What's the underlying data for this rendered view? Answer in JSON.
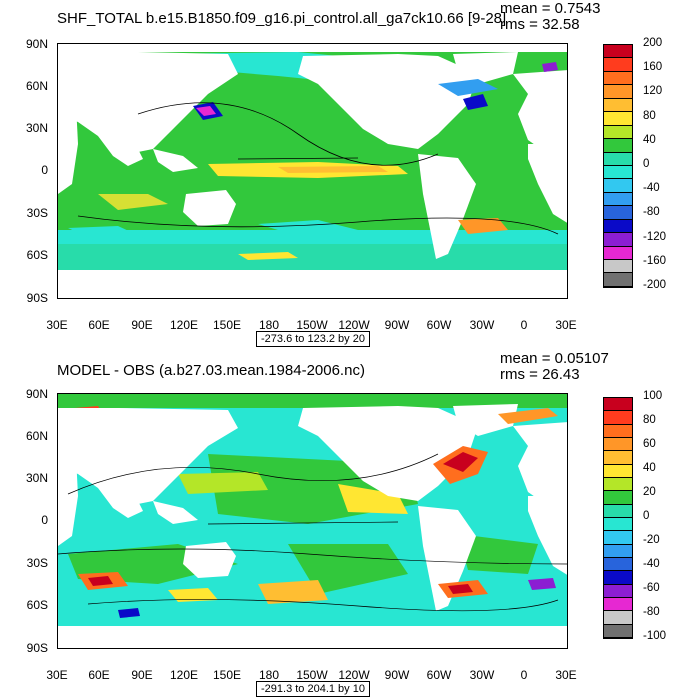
{
  "panels": [
    {
      "title": "SHF_TOTAL b.e15.B1850.f09_g16.pi_control.all_ga7ck10.66 [9-28]",
      "mean": "mean = 0.7543",
      "rms": "rms = 32.58",
      "range": "-273.6 to 123.2 by 20",
      "colorbar_labels": [
        "200",
        "160",
        "120",
        "80",
        "40",
        "0",
        "-40",
        "-80",
        "-120",
        "-160",
        "-200"
      ],
      "colorbar_colors": [
        "#c8001e",
        "#ff3c1e",
        "#ff6e1e",
        "#ff9628",
        "#ffbe32",
        "#ffe632",
        "#b4e628",
        "#32c83c",
        "#28dcaa",
        "#28e6d2",
        "#32c8f0",
        "#329ef0",
        "#2864dc",
        "#0a0ac8",
        "#8c1ed2",
        "#e628d2",
        "#c8c8c8",
        "#707070"
      ]
    },
    {
      "title": "MODEL - OBS (a.b27.03.mean.1984-2006.nc)",
      "mean": "mean = 0.05107",
      "rms": "rms = 26.43",
      "range": "-291.3 to 204.1 by 10",
      "colorbar_labels": [
        "100",
        "80",
        "60",
        "40",
        "20",
        "0",
        "-20",
        "-40",
        "-60",
        "-80",
        "-100"
      ],
      "colorbar_colors": [
        "#c8001e",
        "#ff3c1e",
        "#ff6e1e",
        "#ff9628",
        "#ffbe32",
        "#ffe632",
        "#b4e628",
        "#32c83c",
        "#28dcaa",
        "#28e6d2",
        "#32c8f0",
        "#329ef0",
        "#2864dc",
        "#0a0ac8",
        "#8c1ed2",
        "#e628d2",
        "#c8c8c8",
        "#707070"
      ]
    }
  ],
  "lat_labels": [
    "90N",
    "60N",
    "30N",
    "0",
    "30S",
    "60S",
    "90S"
  ],
  "lon_labels": [
    "30E",
    "60E",
    "90E",
    "120E",
    "150E",
    "180",
    "150W",
    "120W",
    "90W",
    "60W",
    "30W",
    "0",
    "30E"
  ]
}
